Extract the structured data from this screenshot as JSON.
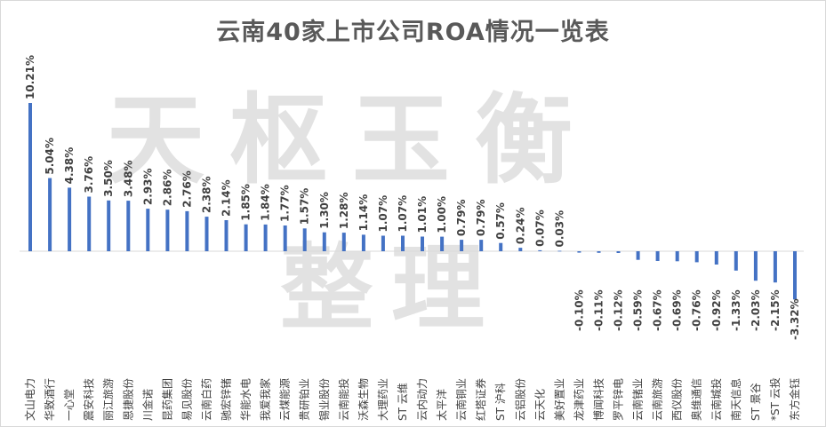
{
  "chart_data": {
    "type": "bar",
    "title": "云南40家上市公司ROA情况一览表",
    "watermark": "天枢玉衡整理",
    "xlabel": "",
    "ylabel": "",
    "unit": "%",
    "ylim": [
      -3.32,
      10.21
    ],
    "grid": false,
    "legend": "none",
    "bar_color": "#4472c4",
    "categories": [
      "文山电力",
      "华致酒行",
      "一心堂",
      "震安科技",
      "丽江旅游",
      "恩捷股份",
      "川金诺",
      "昆药集团",
      "易见股份",
      "云南白药",
      "驰宏锌锗",
      "华能水电",
      "我爱我家",
      "云煤能源",
      "贵研铂业",
      "锡业股份",
      "云南能投",
      "沃森生物",
      "大理药业",
      "ST 云维",
      "云内动力",
      "太平洋",
      "云南铜业",
      "红塔证券",
      "ST 沪科",
      "云铝股份",
      "云天化",
      "美好置业",
      "龙津药业",
      "博闻科技",
      "罗平锌电",
      "云南锗业",
      "云南旅游",
      "西仪股份",
      "奥维通信",
      "云南城投",
      "南天信息",
      "ST 景谷",
      "*ST 云投",
      "东方金钰"
    ],
    "values": [
      10.21,
      5.04,
      4.38,
      3.76,
      3.5,
      3.48,
      2.93,
      2.86,
      2.76,
      2.38,
      2.14,
      1.85,
      1.84,
      1.77,
      1.57,
      1.3,
      1.28,
      1.14,
      1.07,
      1.07,
      1.01,
      1.0,
      0.79,
      0.79,
      0.57,
      0.24,
      0.07,
      0.03,
      -0.1,
      -0.11,
      -0.12,
      -0.59,
      -0.67,
      -0.69,
      -0.76,
      -0.92,
      -1.33,
      -2.03,
      -2.15,
      -3.32
    ],
    "labels": [
      "10.21%",
      "5.04%",
      "4.38%",
      "3.76%",
      "3.50%",
      "3.48%",
      "2.93%",
      "2.86%",
      "2.76%",
      "2.38%",
      "2.14%",
      "1.85%",
      "1.84%",
      "1.77%",
      "1.57%",
      "1.30%",
      "1.28%",
      "1.14%",
      "1.07%",
      "1.07%",
      "1.01%",
      "1.00%",
      "0.79%",
      "0.79%",
      "0.57%",
      "0.24%",
      "0.07%",
      "0.03%",
      "-0.10%",
      "-0.11%",
      "-0.12%",
      "-0.59%",
      "-0.67%",
      "-0.69%",
      "-0.76%",
      "-0.92%",
      "-1.33%",
      "-2.03%",
      "-2.15%",
      "-3.32%"
    ]
  }
}
